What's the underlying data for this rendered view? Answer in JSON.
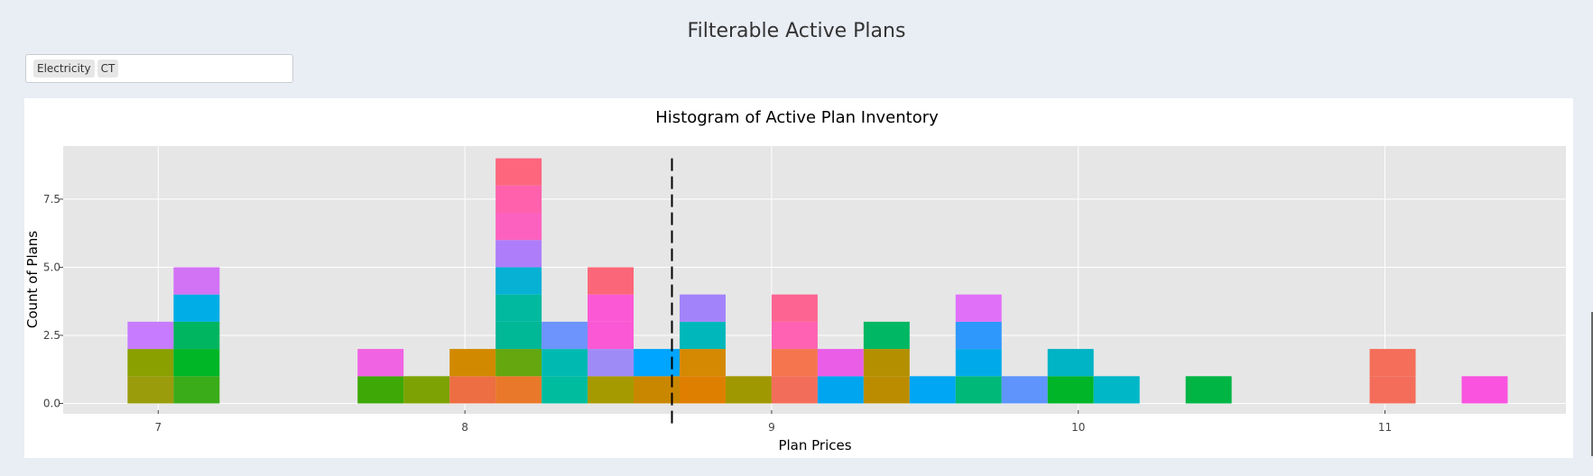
{
  "page": {
    "title": "Filterable Active Plans"
  },
  "filter": {
    "tags": [
      "Electricity",
      "CT"
    ]
  },
  "chart_data": {
    "type": "bar",
    "title": "Histogram of Active Plan Inventory",
    "xlabel": "Plan Prices",
    "ylabel": "Count of Plans",
    "xlim": [
      6.69,
      11.59
    ],
    "ylim": [
      -0.38,
      9.45
    ],
    "xticks": [
      "7",
      "8",
      "9",
      "10",
      "11"
    ],
    "yticks": [
      "0.0",
      "2.5",
      "5.0",
      "7.5"
    ],
    "grid": true,
    "bin_width": 0.15,
    "reference_line": {
      "x": 8.675,
      "style": "dashed"
    },
    "bins": [
      {
        "start": 6.9,
        "segments": [
          {
            "count": 1,
            "color": "#9a9c0c"
          },
          {
            "count": 1,
            "color": "#89a000"
          },
          {
            "count": 1,
            "color": "#c77cff"
          }
        ]
      },
      {
        "start": 7.05,
        "segments": [
          {
            "count": 1,
            "color": "#3aab19"
          },
          {
            "count": 1,
            "color": "#00b526"
          },
          {
            "count": 1,
            "color": "#00b55f"
          },
          {
            "count": 1,
            "color": "#00ade6"
          },
          {
            "count": 1,
            "color": "#d272f5"
          }
        ]
      },
      {
        "start": 7.65,
        "segments": [
          {
            "count": 1,
            "color": "#3ea806"
          },
          {
            "count": 1,
            "color": "#f063e3"
          }
        ]
      },
      {
        "start": 7.8,
        "segments": [
          {
            "count": 1,
            "color": "#7ca303"
          }
        ]
      },
      {
        "start": 7.95,
        "segments": [
          {
            "count": 1,
            "color": "#ed6e43"
          },
          {
            "count": 1,
            "color": "#d18a00"
          }
        ]
      },
      {
        "start": 8.1,
        "segments": [
          {
            "count": 1,
            "color": "#e9782a"
          },
          {
            "count": 1,
            "color": "#64a70e"
          },
          {
            "count": 1,
            "color": "#00b796"
          },
          {
            "count": 1,
            "color": "#00b99f"
          },
          {
            "count": 1,
            "color": "#06b1d4"
          },
          {
            "count": 1,
            "color": "#ae7efa"
          },
          {
            "count": 1,
            "color": "#fd61bf"
          },
          {
            "count": 1,
            "color": "#ff61ad"
          },
          {
            "count": 1,
            "color": "#fd667d"
          }
        ]
      },
      {
        "start": 8.25,
        "segments": [
          {
            "count": 1,
            "color": "#00bc9f"
          },
          {
            "count": 1,
            "color": "#00bab2"
          },
          {
            "count": 1,
            "color": "#6d93fc"
          }
        ]
      },
      {
        "start": 8.4,
        "segments": [
          {
            "count": 1,
            "color": "#a59a00"
          },
          {
            "count": 1,
            "color": "#9f8bf6"
          },
          {
            "count": 1,
            "color": "#fb58d5"
          },
          {
            "count": 1,
            "color": "#fb58d5"
          },
          {
            "count": 1,
            "color": "#fb6779"
          }
        ]
      },
      {
        "start": 8.55,
        "segments": [
          {
            "count": 1,
            "color": "#c98700"
          },
          {
            "count": 1,
            "color": "#00a5ff"
          }
        ]
      },
      {
        "start": 8.7,
        "segments": [
          {
            "count": 1,
            "color": "#df7f00"
          },
          {
            "count": 1,
            "color": "#d58902"
          },
          {
            "count": 1,
            "color": "#00b8bb"
          },
          {
            "count": 1,
            "color": "#a383fa"
          }
        ]
      },
      {
        "start": 8.85,
        "segments": [
          {
            "count": 1,
            "color": "#a09800"
          }
        ]
      },
      {
        "start": 9.0,
        "segments": [
          {
            "count": 1,
            "color": "#f36e5a"
          },
          {
            "count": 1,
            "color": "#f4754e"
          },
          {
            "count": 1,
            "color": "#ff62b2"
          },
          {
            "count": 1,
            "color": "#fd6492"
          }
        ]
      },
      {
        "start": 9.15,
        "segments": [
          {
            "count": 1,
            "color": "#00a5f0"
          },
          {
            "count": 1,
            "color": "#ea5de7"
          }
        ]
      },
      {
        "start": 9.3,
        "segments": [
          {
            "count": 1,
            "color": "#bb8c00"
          },
          {
            "count": 1,
            "color": "#b48f00"
          },
          {
            "count": 1,
            "color": "#00b763"
          }
        ]
      },
      {
        "start": 9.45,
        "segments": [
          {
            "count": 1,
            "color": "#00a6f4"
          }
        ]
      },
      {
        "start": 9.6,
        "segments": [
          {
            "count": 1,
            "color": "#00b877"
          },
          {
            "count": 1,
            "color": "#00aaea"
          },
          {
            "count": 1,
            "color": "#2e98fc"
          },
          {
            "count": 1,
            "color": "#e170f8"
          }
        ]
      },
      {
        "start": 9.75,
        "segments": [
          {
            "count": 1,
            "color": "#5e94fc"
          }
        ]
      },
      {
        "start": 9.9,
        "segments": [
          {
            "count": 1,
            "color": "#00b528"
          },
          {
            "count": 1,
            "color": "#00b3c5"
          }
        ]
      },
      {
        "start": 10.05,
        "segments": [
          {
            "count": 1,
            "color": "#00b7c7"
          }
        ]
      },
      {
        "start": 10.35,
        "segments": [
          {
            "count": 1,
            "color": "#00b544"
          }
        ]
      },
      {
        "start": 10.95,
        "segments": [
          {
            "count": 1,
            "color": "#f36d5a"
          },
          {
            "count": 1,
            "color": "#f46e59"
          }
        ]
      },
      {
        "start": 11.25,
        "segments": [
          {
            "count": 1,
            "color": "#f953e0"
          }
        ]
      }
    ]
  }
}
